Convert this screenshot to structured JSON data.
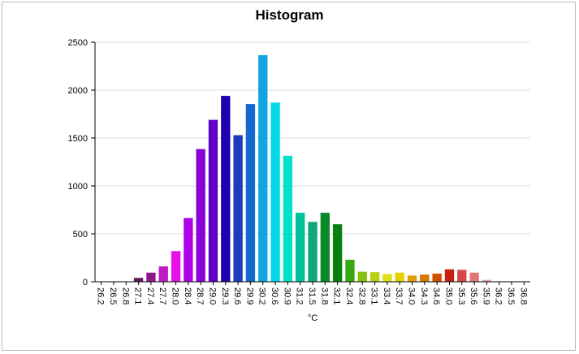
{
  "chart_data": {
    "type": "bar",
    "title": "Histogram",
    "xlabel": "°C",
    "ylabel": "",
    "ylim": [
      0,
      2500
    ],
    "yticks": [
      0,
      500,
      1000,
      1500,
      2000,
      2500
    ],
    "grid": true,
    "categories": [
      "26.2",
      "26.5",
      "26.8",
      "27.1",
      "27.4",
      "27.7",
      "28.0",
      "28.4",
      "28.7",
      "29.0",
      "29.3",
      "29.6",
      "29.9",
      "30.2",
      "30.6",
      "30.9",
      "31.2",
      "31.5",
      "31.8",
      "32.1",
      "32.4",
      "32.8",
      "33.1",
      "33.4",
      "33.7",
      "34.0",
      "34.3",
      "34.6",
      "35.0",
      "35.3",
      "35.6",
      "35.9",
      "36.2",
      "36.5",
      "36.8"
    ],
    "values": [
      2,
      2,
      4,
      40,
      95,
      160,
      320,
      665,
      1385,
      1690,
      1940,
      1530,
      1855,
      2365,
      1870,
      1315,
      720,
      625,
      720,
      600,
      230,
      105,
      100,
      80,
      95,
      65,
      75,
      85,
      130,
      125,
      95,
      20,
      5,
      3,
      2
    ],
    "colors": [
      "#e8e8e8",
      "#e8e8e8",
      "#e0d0e0",
      "#5a1a5a",
      "#8a1a8a",
      "#c01ac0",
      "#e810e8",
      "#b000e8",
      "#8a00d8",
      "#6000c8",
      "#2000b0",
      "#1c3cc0",
      "#1466d0",
      "#10a4e0",
      "#00d8e8",
      "#00e0c8",
      "#00c098",
      "#10a878",
      "#0a8a28",
      "#088010",
      "#38a810",
      "#88c010",
      "#b8d010",
      "#e0e010",
      "#e8d000",
      "#e0a000",
      "#d87800",
      "#d05000",
      "#c82010",
      "#d84848",
      "#e07878",
      "#e8a8b0",
      "#f0d0d8",
      "#f0e0e0",
      "#f0f0f0"
    ]
  }
}
